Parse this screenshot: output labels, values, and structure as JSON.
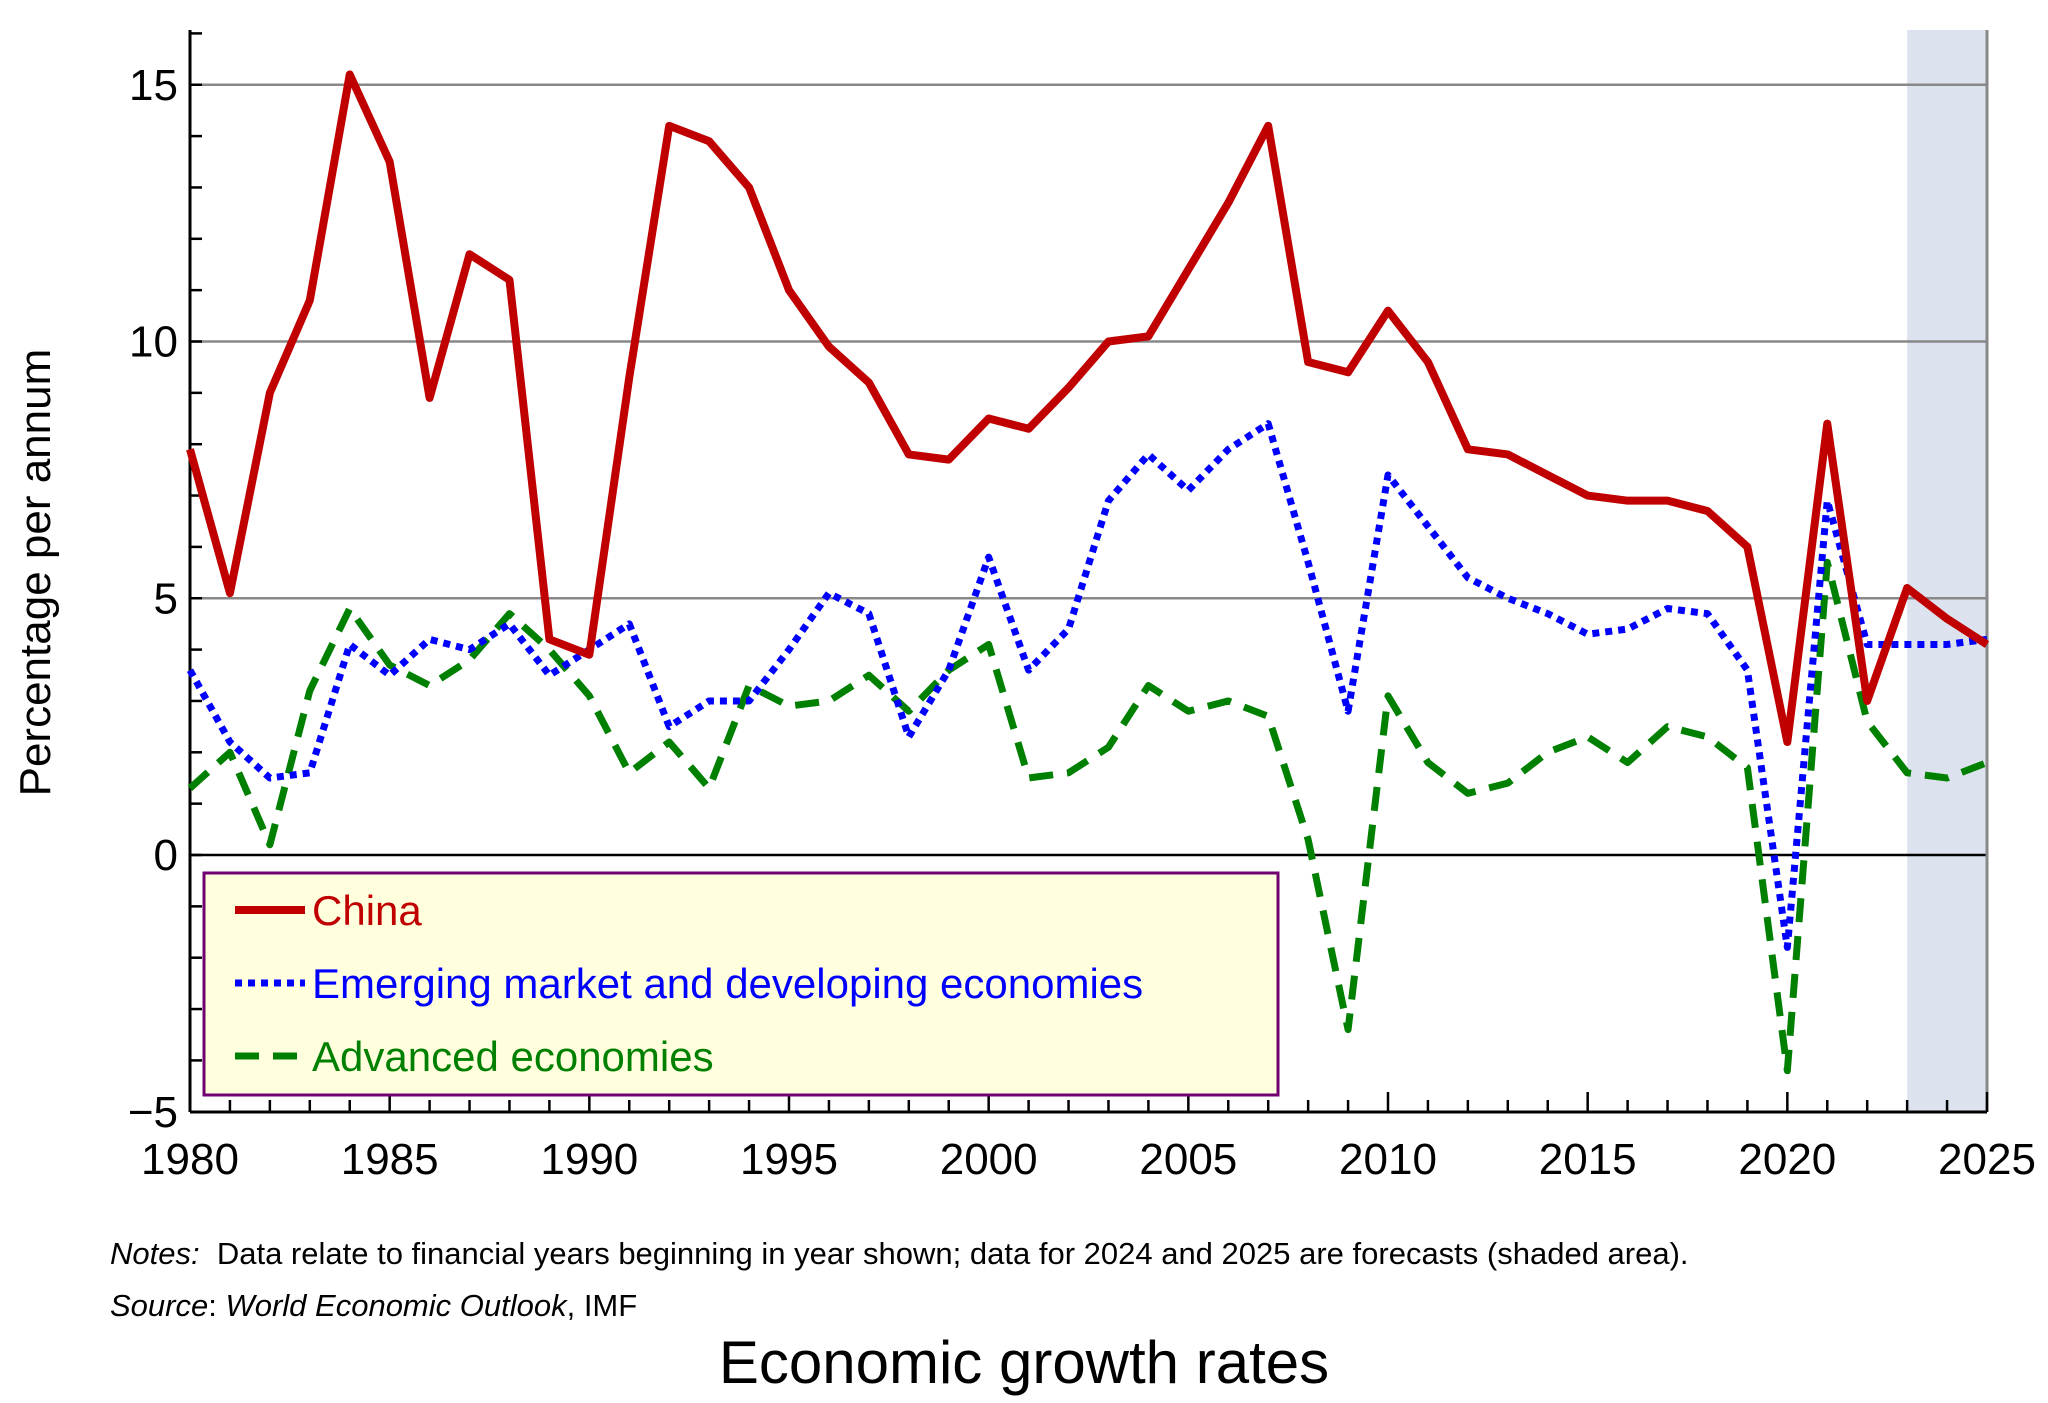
{
  "chart_data": {
    "type": "line",
    "title": "Economic growth rates",
    "xlabel": "",
    "ylabel": "Percentage per annum",
    "xlim": [
      1980,
      2025
    ],
    "ylim": [
      -5,
      16
    ],
    "x_ticks": [
      "1980",
      "1985",
      "1990",
      "1995",
      "2000",
      "2005",
      "2010",
      "2015",
      "2020",
      "2025"
    ],
    "y_ticks": [
      "−5",
      "0",
      "5",
      "10",
      "15"
    ],
    "grid": "horizontal at 5, 10, 15",
    "forecast_shading": [
      2023,
      2025
    ],
    "forecast_shading_color": "#dde3ee",
    "legend_placement": "bottom-left",
    "x": [
      1980,
      1981,
      1982,
      1983,
      1984,
      1985,
      1986,
      1987,
      1988,
      1989,
      1990,
      1991,
      1992,
      1993,
      1994,
      1995,
      1996,
      1997,
      1998,
      1999,
      2000,
      2001,
      2002,
      2003,
      2004,
      2005,
      2006,
      2007,
      2008,
      2009,
      2010,
      2011,
      2012,
      2013,
      2014,
      2015,
      2016,
      2017,
      2018,
      2019,
      2020,
      2021,
      2022,
      2023,
      2024,
      2025
    ],
    "series": [
      {
        "name": "China",
        "color": "#c00000",
        "style": "solid",
        "values": [
          7.9,
          5.1,
          9.0,
          10.8,
          15.2,
          13.5,
          8.9,
          11.7,
          11.2,
          4.2,
          3.9,
          9.3,
          14.2,
          13.9,
          13.0,
          11.0,
          9.9,
          9.2,
          7.8,
          7.7,
          8.5,
          8.3,
          9.1,
          10.0,
          10.1,
          11.4,
          12.7,
          14.2,
          9.6,
          9.4,
          10.6,
          9.6,
          7.9,
          7.8,
          7.4,
          7.0,
          6.9,
          6.9,
          6.7,
          6.0,
          2.2,
          8.4,
          3.0,
          5.2,
          4.6,
          4.1
        ]
      },
      {
        "name": "Emerging market and developing economies",
        "color": "#0000ff",
        "style": "dotted",
        "values": [
          3.6,
          2.2,
          1.5,
          1.6,
          4.1,
          3.5,
          4.2,
          4.0,
          4.5,
          3.5,
          4.0,
          4.5,
          2.5,
          3.0,
          3.0,
          4.0,
          5.1,
          4.7,
          2.3,
          3.6,
          5.8,
          3.6,
          4.4,
          6.9,
          7.8,
          7.1,
          7.9,
          8.4,
          5.7,
          2.8,
          7.4,
          6.4,
          5.4,
          5.0,
          4.7,
          4.3,
          4.4,
          4.8,
          4.7,
          3.6,
          -1.8,
          6.9,
          4.1,
          4.1,
          4.1,
          4.2
        ]
      },
      {
        "name": "Advanced economies",
        "color": "#008000",
        "style": "dashed",
        "values": [
          1.3,
          2.0,
          0.2,
          3.2,
          4.8,
          3.7,
          3.3,
          3.8,
          4.7,
          4.0,
          3.1,
          1.6,
          2.2,
          1.3,
          3.3,
          2.9,
          3.0,
          3.5,
          2.8,
          3.6,
          4.1,
          1.5,
          1.6,
          2.1,
          3.3,
          2.8,
          3.0,
          2.7,
          0.3,
          -3.4,
          3.1,
          1.8,
          1.2,
          1.4,
          2.0,
          2.3,
          1.8,
          2.5,
          2.3,
          1.7,
          -4.2,
          5.7,
          2.6,
          1.6,
          1.5,
          1.8
        ]
      }
    ]
  },
  "notes": {
    "label": "Notes:",
    "text": "  Data relate to financial years beginning in year shown; data for 2024 and 2025 are forecasts (shaded area).",
    "source_label": "Source",
    "source_sep": ": ",
    "source_title": "World Economic Outlook",
    "source_rest": ", IMF"
  }
}
